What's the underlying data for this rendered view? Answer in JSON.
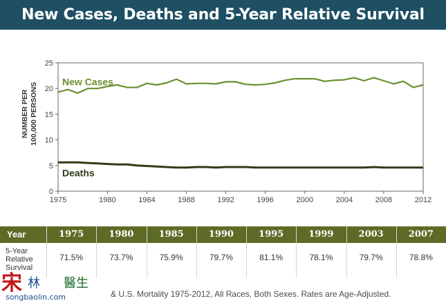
{
  "header": {
    "title": "New Cases, Deaths and 5-Year Relative Survival"
  },
  "chart_data": {
    "type": "line",
    "ylabel": "NUMBER PER\n100,000 PERSONS",
    "xlim": [
      1975,
      2012
    ],
    "ylim": [
      0,
      25
    ],
    "xticks": [
      1975,
      1980,
      1984,
      1988,
      1992,
      1996,
      2000,
      2004,
      2008,
      2012
    ],
    "yticks": [
      0,
      5,
      10,
      15,
      20,
      25
    ],
    "grid": false,
    "series": [
      {
        "name": "New Cases",
        "color": "#6b8f2f",
        "x": [
          1975,
          1976,
          1977,
          1978,
          1979,
          1980,
          1981,
          1982,
          1983,
          1984,
          1985,
          1986,
          1987,
          1988,
          1989,
          1990,
          1991,
          1992,
          1993,
          1994,
          1995,
          1996,
          1997,
          1998,
          1999,
          2000,
          2001,
          2002,
          2003,
          2004,
          2005,
          2006,
          2007,
          2008,
          2009,
          2010,
          2011,
          2012
        ],
        "values": [
          19.3,
          19.8,
          19.1,
          20.0,
          20.0,
          20.4,
          20.7,
          20.2,
          20.2,
          21.0,
          20.7,
          21.1,
          21.8,
          20.9,
          21.0,
          21.0,
          20.9,
          21.3,
          21.3,
          20.8,
          20.7,
          20.8,
          21.1,
          21.6,
          21.9,
          21.9,
          21.9,
          21.4,
          21.6,
          21.7,
          22.1,
          21.5,
          22.1,
          21.5,
          20.9,
          21.4,
          20.2,
          20.7
        ]
      },
      {
        "name": "Deaths",
        "color": "#2e3b18",
        "x": [
          1975,
          1976,
          1977,
          1978,
          1979,
          1980,
          1981,
          1982,
          1983,
          1984,
          1985,
          1986,
          1987,
          1988,
          1989,
          1990,
          1991,
          1992,
          1993,
          1994,
          1995,
          1996,
          1997,
          1998,
          1999,
          2000,
          2001,
          2002,
          2003,
          2004,
          2005,
          2006,
          2007,
          2008,
          2009,
          2010,
          2011,
          2012
        ],
        "values": [
          5.6,
          5.6,
          5.6,
          5.5,
          5.4,
          5.3,
          5.2,
          5.2,
          5.0,
          4.9,
          4.8,
          4.7,
          4.6,
          4.6,
          4.7,
          4.7,
          4.6,
          4.7,
          4.7,
          4.7,
          4.6,
          4.6,
          4.6,
          4.6,
          4.6,
          4.6,
          4.6,
          4.6,
          4.6,
          4.6,
          4.6,
          4.6,
          4.7,
          4.6,
          4.6,
          4.6,
          4.6,
          4.6
        ]
      }
    ]
  },
  "table": {
    "header_label": "Year",
    "row_label": "5-Year Relative Survival",
    "years": [
      "1975",
      "1980",
      "1985",
      "1990",
      "1995",
      "1999",
      "2003",
      "2007"
    ],
    "values": [
      "71.5%",
      "73.7%",
      "75.9%",
      "79.7%",
      "81.1%",
      "78.1%",
      "79.7%",
      "78.8%"
    ]
  },
  "footer": {
    "note": "& U.S. Mortality 1975-2012, All Races, Both Sexes. Rates are Age-Adjusted.",
    "watermark": "宋林醫生 songbaolin.com"
  },
  "colors": {
    "title_bar": "#1e4f63",
    "table_header": "#5d6b26",
    "new_cases": "#6b8f2f",
    "deaths": "#2e3b18"
  }
}
